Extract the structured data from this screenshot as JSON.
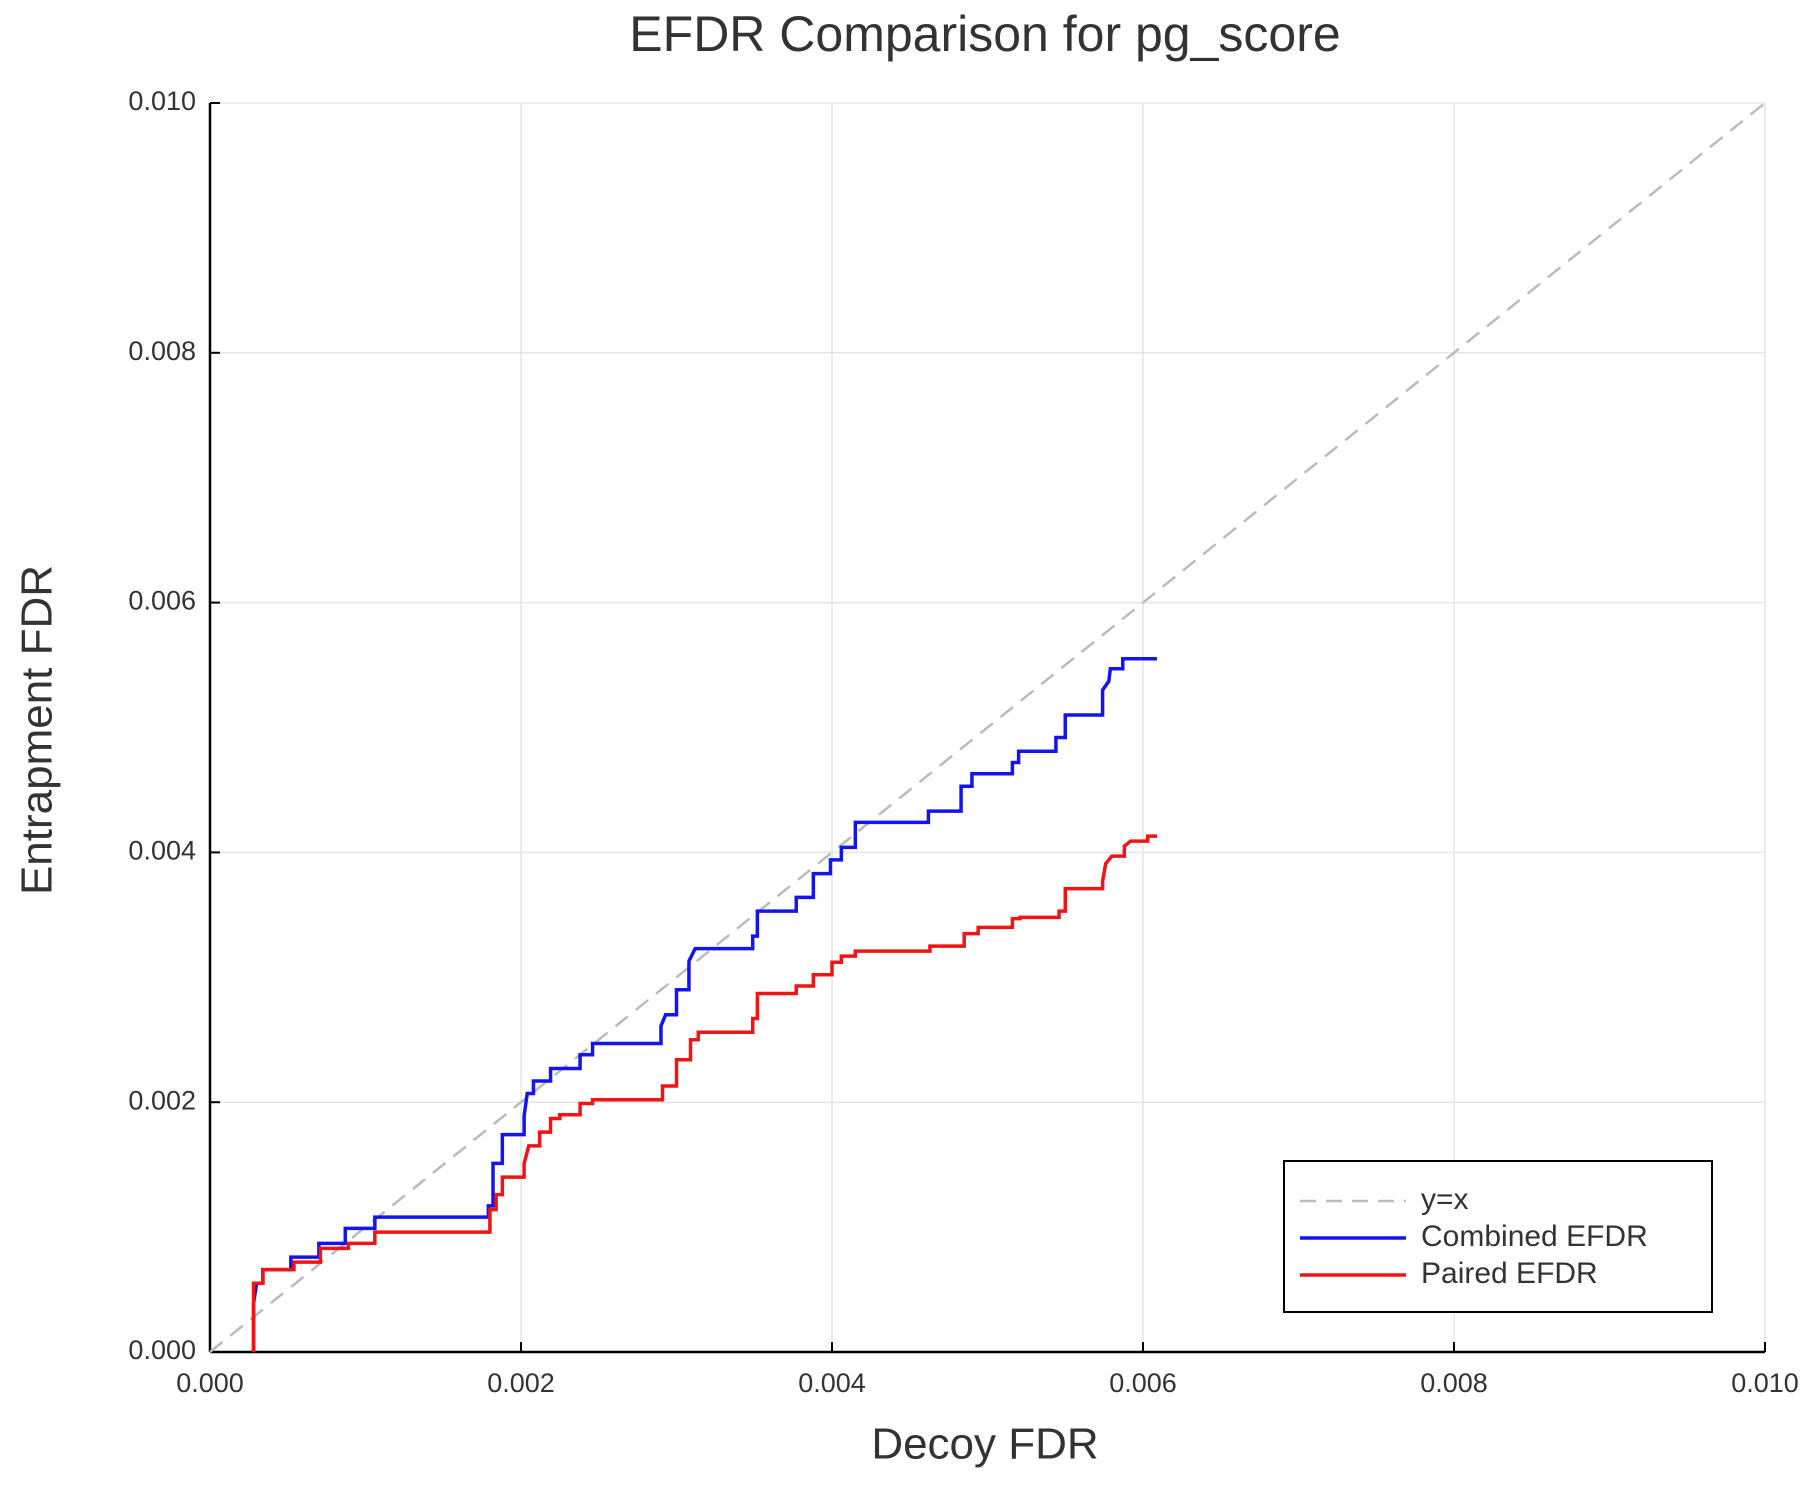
{
  "chart_data": {
    "type": "line",
    "title": "EFDR Comparison for pg_score",
    "x_label": "Decoy FDR",
    "y_label": "Entrapment FDR",
    "xlim": [
      0,
      0.01
    ],
    "ylim": [
      0,
      0.01
    ],
    "xticks": [
      {
        "value": 0,
        "label": "0.000"
      },
      {
        "value": 0.002,
        "label": "0.002"
      },
      {
        "value": 0.004,
        "label": "0.004"
      },
      {
        "value": 0.006,
        "label": "0.006"
      },
      {
        "value": 0.008,
        "label": "0.008"
      },
      {
        "value": 0.01,
        "label": "0.010"
      }
    ],
    "yticks": [
      {
        "value": 0,
        "label": "0.000"
      },
      {
        "value": 0.002,
        "label": "0.002"
      },
      {
        "value": 0.004,
        "label": "0.004"
      },
      {
        "value": 0.006,
        "label": "0.006"
      },
      {
        "value": 0.008,
        "label": "0.008"
      },
      {
        "value": 0.01,
        "label": "0.010"
      }
    ],
    "grid": true,
    "legend": "bottom-right",
    "series": [
      {
        "name": "y=x",
        "color": "#bbbbbb",
        "dashed": true,
        "x": [
          0,
          0.01
        ],
        "values": [
          0,
          0.01
        ]
      },
      {
        "name": "Combined EFDR",
        "color": "#1414f0",
        "x": [
          0.00028,
          0.00028,
          0.0003,
          0.00034,
          0.00034,
          0.00052,
          0.00052,
          0.0007,
          0.0007,
          0.00087,
          0.00087,
          0.00106,
          0.00106,
          0.00179,
          0.00179,
          0.00182,
          0.00182,
          0.00188,
          0.00188,
          0.00202,
          0.00202,
          0.00204,
          0.00208,
          0.00208,
          0.00219,
          0.00219,
          0.00238,
          0.00238,
          0.00246,
          0.00246,
          0.0029,
          0.0029,
          0.00293,
          0.003,
          0.003,
          0.00308,
          0.00308,
          0.00312,
          0.00349,
          0.00349,
          0.00352,
          0.00352,
          0.00377,
          0.00377,
          0.00388,
          0.00388,
          0.00399,
          0.00399,
          0.00406,
          0.00406,
          0.00415,
          0.00415,
          0.00462,
          0.00462,
          0.00483,
          0.00483,
          0.0049,
          0.0049,
          0.00516,
          0.00516,
          0.0052,
          0.0052,
          0.00544,
          0.00544,
          0.0055,
          0.0055,
          0.00574,
          0.00574,
          0.00578,
          0.00579,
          0.00587,
          0.00587,
          0.00609
        ],
        "values": [
          0,
          0.00039,
          0.00055,
          0.00055,
          0.00066,
          0.00066,
          0.00076,
          0.00076,
          0.00087,
          0.00087,
          0.00099,
          0.00099,
          0.00108,
          0.00108,
          0.00117,
          0.00117,
          0.00151,
          0.00151,
          0.00174,
          0.00174,
          0.00189,
          0.00207,
          0.00207,
          0.00217,
          0.00217,
          0.00227,
          0.00227,
          0.00238,
          0.00238,
          0.00247,
          0.00247,
          0.00261,
          0.0027,
          0.0027,
          0.0029,
          0.0029,
          0.00313,
          0.00323,
          0.00323,
          0.00333,
          0.00333,
          0.00353,
          0.00353,
          0.00364,
          0.00364,
          0.00383,
          0.00383,
          0.00394,
          0.00394,
          0.00404,
          0.00404,
          0.00424,
          0.00424,
          0.00433,
          0.00433,
          0.00453,
          0.00453,
          0.00463,
          0.00463,
          0.00472,
          0.00472,
          0.00481,
          0.00481,
          0.00492,
          0.00492,
          0.0051,
          0.0051,
          0.0053,
          0.00537,
          0.00547,
          0.00547,
          0.00555,
          0.00555
        ]
      },
      {
        "name": "Paired EFDR",
        "color": "#f01414",
        "x": [
          0.00028,
          0.00028,
          0.00034,
          0.00034,
          0.00054,
          0.00054,
          0.00071,
          0.00071,
          0.00089,
          0.00089,
          0.00106,
          0.00106,
          0.0018,
          0.0018,
          0.00184,
          0.00184,
          0.00188,
          0.00188,
          0.00202,
          0.00202,
          0.00205,
          0.00212,
          0.00212,
          0.00219,
          0.00219,
          0.00225,
          0.00225,
          0.00238,
          0.00238,
          0.00246,
          0.00246,
          0.00291,
          0.00291,
          0.003,
          0.003,
          0.00309,
          0.00309,
          0.00314,
          0.00314,
          0.00349,
          0.00349,
          0.00352,
          0.00352,
          0.00377,
          0.00377,
          0.00388,
          0.00388,
          0.004,
          0.004,
          0.00406,
          0.00406,
          0.00415,
          0.00415,
          0.00463,
          0.00463,
          0.00485,
          0.00485,
          0.00494,
          0.00494,
          0.00516,
          0.00516,
          0.00521,
          0.00521,
          0.00546,
          0.00546,
          0.0055,
          0.0055,
          0.00574,
          0.00574,
          0.00576,
          0.0058,
          0.00588,
          0.00588,
          0.00592,
          0.00603,
          0.00603,
          0.00609
        ],
        "values": [
          0,
          0.00055,
          0.00055,
          0.00066,
          0.00066,
          0.00072,
          0.00072,
          0.00083,
          0.00083,
          0.00087,
          0.00087,
          0.00096,
          0.00096,
          0.00114,
          0.00114,
          0.00126,
          0.00126,
          0.0014,
          0.0014,
          0.00151,
          0.00165,
          0.00165,
          0.00176,
          0.00176,
          0.00187,
          0.00187,
          0.0019,
          0.0019,
          0.00199,
          0.00199,
          0.00202,
          0.00202,
          0.00213,
          0.00213,
          0.00234,
          0.00234,
          0.0025,
          0.0025,
          0.00256,
          0.00256,
          0.00267,
          0.00267,
          0.00287,
          0.00287,
          0.00293,
          0.00293,
          0.00302,
          0.00302,
          0.00312,
          0.00312,
          0.00317,
          0.00317,
          0.00321,
          0.00321,
          0.00325,
          0.00325,
          0.00335,
          0.00335,
          0.0034,
          0.0034,
          0.00347,
          0.00347,
          0.00348,
          0.00348,
          0.00353,
          0.00353,
          0.00371,
          0.00371,
          0.00377,
          0.00391,
          0.00397,
          0.00397,
          0.00405,
          0.00409,
          0.00409,
          0.00413,
          0.00413
        ]
      }
    ]
  }
}
